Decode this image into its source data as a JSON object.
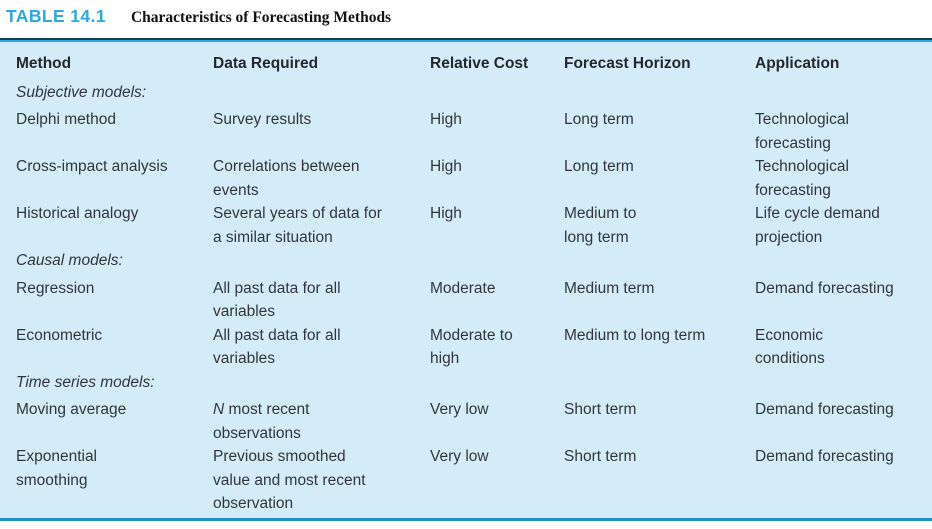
{
  "figure": {
    "tag": "TABLE 14.1",
    "caption": "Characteristics of Forecasting Methods"
  },
  "colors": {
    "accent_cyan": "#29a9e1",
    "table_bg": "#d4ecf7",
    "rule_dark": "#1c3b54",
    "rule_cyan": "#29abe2",
    "rule_bottom": "#1f8fca",
    "text": "#32363c"
  },
  "table": {
    "columns": [
      "Method",
      "Data Required",
      "Relative Cost",
      "Forecast Horizon",
      "Application"
    ],
    "rows": [
      {
        "type": "section",
        "label": "Subjective models:"
      },
      {
        "type": "data",
        "cells": [
          "Delphi method",
          "Survey results",
          "High",
          "Long term",
          "Technological\nforecasting"
        ]
      },
      {
        "type": "data",
        "cells": [
          "Cross-impact analysis",
          "Correlations between\nevents",
          "High",
          "Long term",
          "Technological\nforecasting"
        ]
      },
      {
        "type": "data",
        "cells": [
          "Historical analogy",
          "Several years of data for\na similar situation",
          "High",
          "Medium to\nlong term",
          "Life cycle demand\nprojection"
        ]
      },
      {
        "type": "section",
        "label": "Causal models:"
      },
      {
        "type": "data",
        "cells": [
          "Regression",
          "All past data for all\nvariables",
          "Moderate",
          "Medium term",
          "Demand forecasting"
        ]
      },
      {
        "type": "data",
        "cells": [
          "Econometric",
          "All past data for all\nvariables",
          "Moderate to\nhigh",
          "Medium to long term",
          "Economic\nconditions"
        ]
      },
      {
        "type": "section",
        "label": "Time series models:"
      },
      {
        "type": "data",
        "cells": [
          "Moving average",
          "N most recent\nobservations",
          "Very low",
          "Short term",
          "Demand forecasting"
        ],
        "italic_lead_cell": 1
      },
      {
        "type": "data",
        "cells": [
          "Exponential\nsmoothing",
          "Previous smoothed\nvalue and most recent\nobservation",
          "Very low",
          "Short term",
          "Demand forecasting"
        ]
      }
    ]
  }
}
